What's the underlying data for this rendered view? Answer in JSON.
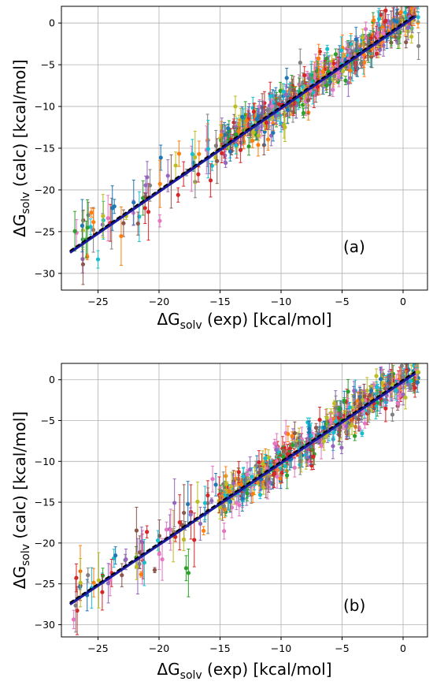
{
  "chart_data": [
    {
      "type": "scatter",
      "panel_label": "(a)",
      "xlabel": {
        "main": "ΔG",
        "sub": "solv",
        "rest": " (exp) [kcal/mol]"
      },
      "ylabel": {
        "main": "ΔG",
        "sub": "solv",
        "rest": " (calc) [kcal/mol]"
      },
      "xlim": [
        -28,
        2
      ],
      "ylim": [
        -32,
        2
      ],
      "xticks": [
        -25,
        -20,
        -15,
        -10,
        -5,
        0
      ],
      "yticks": [
        0,
        -5,
        -10,
        -15,
        -20,
        -25,
        -30
      ],
      "grid": true,
      "fit_line": {
        "x": [
          -27.3,
          1.0
        ],
        "y": [
          -27.5,
          0.8
        ],
        "color": "#1a1aa0"
      },
      "identity_line": {
        "x": [
          -27.3,
          1.0
        ],
        "y": [
          -27.3,
          1.0
        ],
        "color": "#000000",
        "style": "dashed"
      },
      "color_scheme": "a",
      "series_note_points": 600
    },
    {
      "type": "scatter",
      "panel_label": "(b)",
      "xlabel": {
        "main": "ΔG",
        "sub": "solv",
        "rest": " (exp) [kcal/mol]"
      },
      "ylabel": {
        "main": "ΔG",
        "sub": "solv",
        "rest": " (calc) [kcal/mol]"
      },
      "xlim": [
        -28,
        2
      ],
      "ylim": [
        -31.5,
        2
      ],
      "xticks": [
        -25,
        -20,
        -15,
        -10,
        -5,
        0
      ],
      "yticks": [
        0,
        -5,
        -10,
        -15,
        -20,
        -25,
        -30
      ],
      "grid": true,
      "fit_line": {
        "x": [
          -27.3,
          1.0
        ],
        "y": [
          -27.5,
          0.8
        ],
        "color": "#1a1aa0"
      },
      "identity_line": {
        "x": [
          -27.3,
          1.0
        ],
        "y": [
          -27.3,
          1.0
        ],
        "color": "#000000",
        "style": "dashed"
      },
      "color_scheme": "b",
      "series_note_points": 600
    }
  ],
  "colors": {
    "palette_a": [
      "#1f77b4",
      "#ff7f0e",
      "#2ca02c",
      "#d62728",
      "#9467bd",
      "#8c564b",
      "#e377c2",
      "#7f7f7f",
      "#bcbd22",
      "#17becf"
    ],
    "palette_b": [
      "#1f77b4",
      "#ff7f0e",
      "#2ca02c",
      "#d62728",
      "#9467bd",
      "#8c564b",
      "#e377c2",
      "#7f7f7f",
      "#bcbd22",
      "#17becf"
    ]
  }
}
